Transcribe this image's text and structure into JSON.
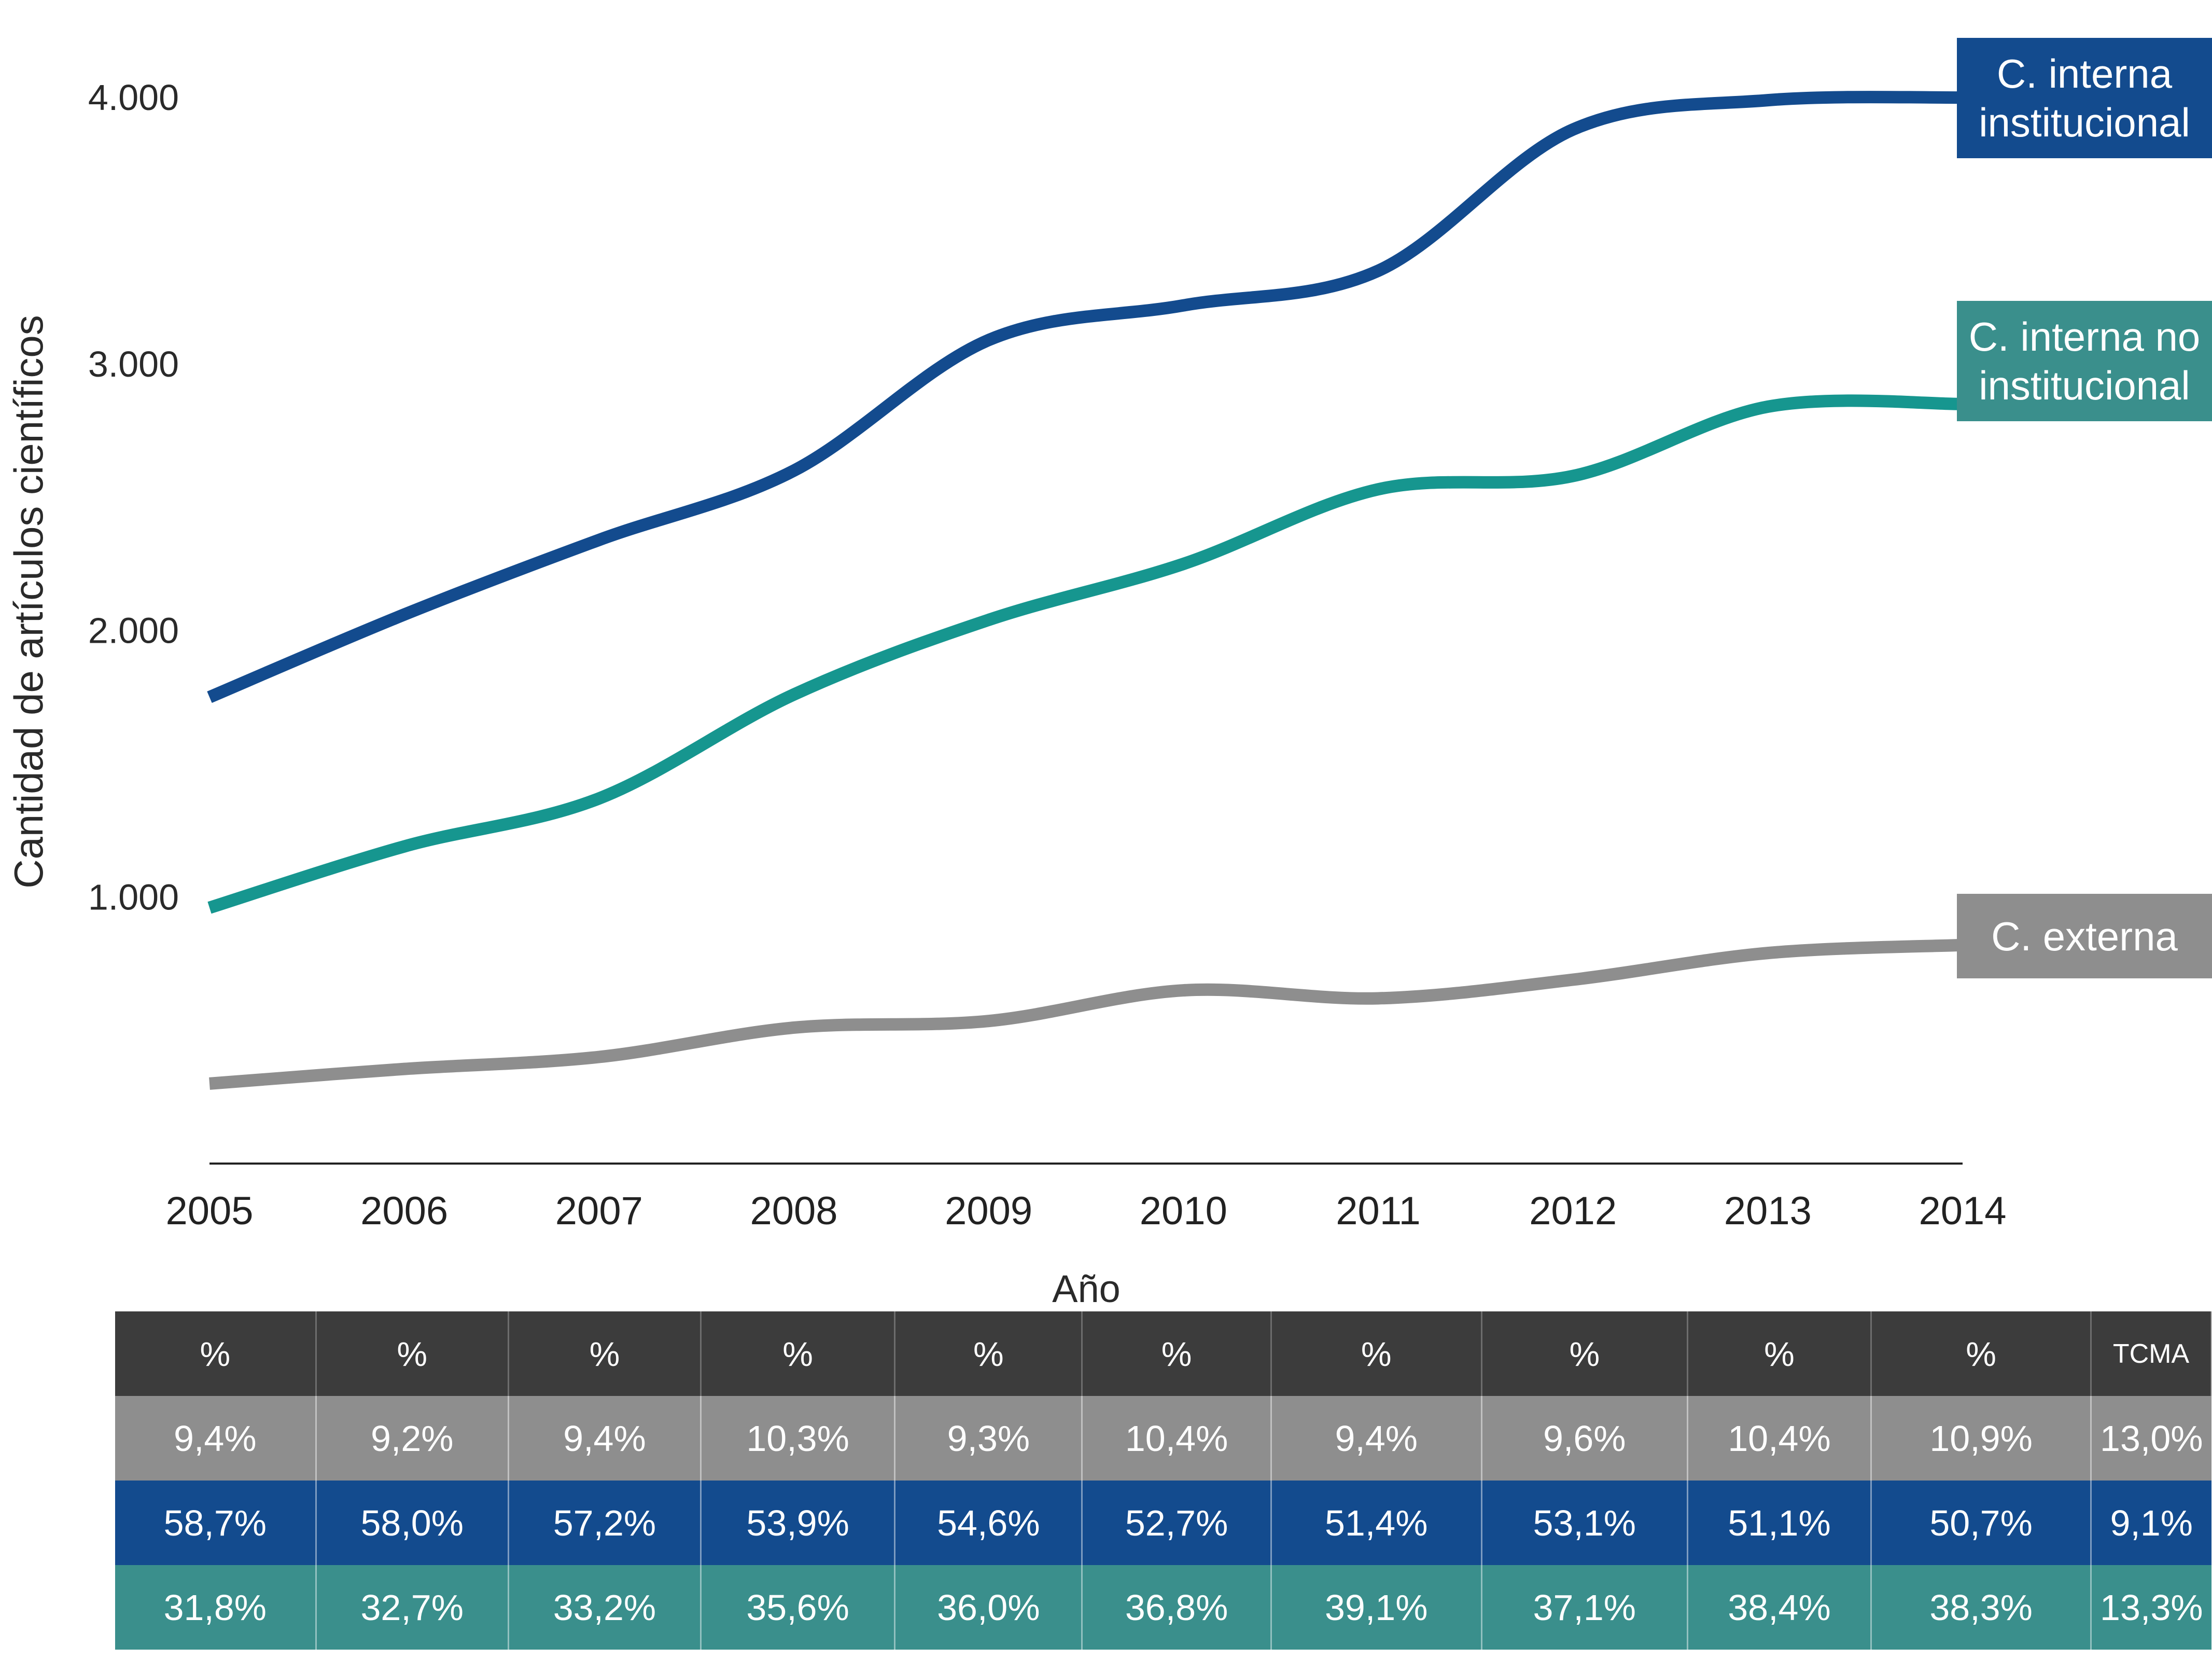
{
  "chart_data": {
    "type": "line",
    "title": "",
    "xlabel": "Año",
    "ylabel": "Cantidad de artículos científicos",
    "x": [
      "2005",
      "2006",
      "2007",
      "2008",
      "2009",
      "2010",
      "2011",
      "2012",
      "2013",
      "2014"
    ],
    "ylim": [
      0,
      4000
    ],
    "yticks": [
      1000,
      2000,
      3000,
      4000
    ],
    "ytick_labels": [
      "1.000",
      "2.000",
      "3.000",
      "4.000"
    ],
    "grid": false,
    "legend": "series labels placed at the right end of each line",
    "series": [
      {
        "name": "C. interna institucional",
        "color": "#134b8e",
        "values": [
          1750,
          2060,
          2340,
          2600,
          3090,
          3220,
          3350,
          3880,
          3990,
          4000
        ]
      },
      {
        "name": "C. interna no institucional",
        "color": "#16968f",
        "values": [
          960,
          1190,
          1370,
          1760,
          2040,
          2250,
          2530,
          2580,
          2840,
          2850
        ]
      },
      {
        "name": "C. externa",
        "color": "#8e8e8e",
        "values": [
          300,
          355,
          400,
          510,
          535,
          650,
          620,
          690,
          790,
          820
        ]
      }
    ],
    "labels": [
      {
        "lines": [
          "C. interna",
          "institucional"
        ],
        "color": "#134b8e"
      },
      {
        "lines": [
          "C. interna no",
          "institucional"
        ],
        "color": "#3a8f8c"
      },
      {
        "lines": [
          "C. externa"
        ],
        "color": "#8e8e8e"
      }
    ]
  },
  "table": {
    "header": [
      "%",
      "%",
      "%",
      "%",
      "%",
      "%",
      "%",
      "%",
      "%",
      "%",
      "TCMA"
    ],
    "header_color": "#3c3c3c",
    "rows": [
      {
        "color": "#8e8e8e",
        "cells": [
          "9,4%",
          "9,2%",
          "9,4%",
          "10,3%",
          "9,3%",
          "10,4%",
          "9,4%",
          "9,6%",
          "10,4%",
          "10,9%",
          "13,0%"
        ]
      },
      {
        "color": "#134b8e",
        "cells": [
          "58,7%",
          "58,0%",
          "57,2%",
          "53,9%",
          "54,6%",
          "52,7%",
          "51,4%",
          "53,1%",
          "51,1%",
          "50,7%",
          "9,1%"
        ]
      },
      {
        "color": "#3a8f8c",
        "cells": [
          "31,8%",
          "32,7%",
          "33,2%",
          "35,6%",
          "36,0%",
          "36,8%",
          "39,1%",
          "37,1%",
          "38,4%",
          "38,3%",
          "13,3%"
        ]
      }
    ]
  }
}
